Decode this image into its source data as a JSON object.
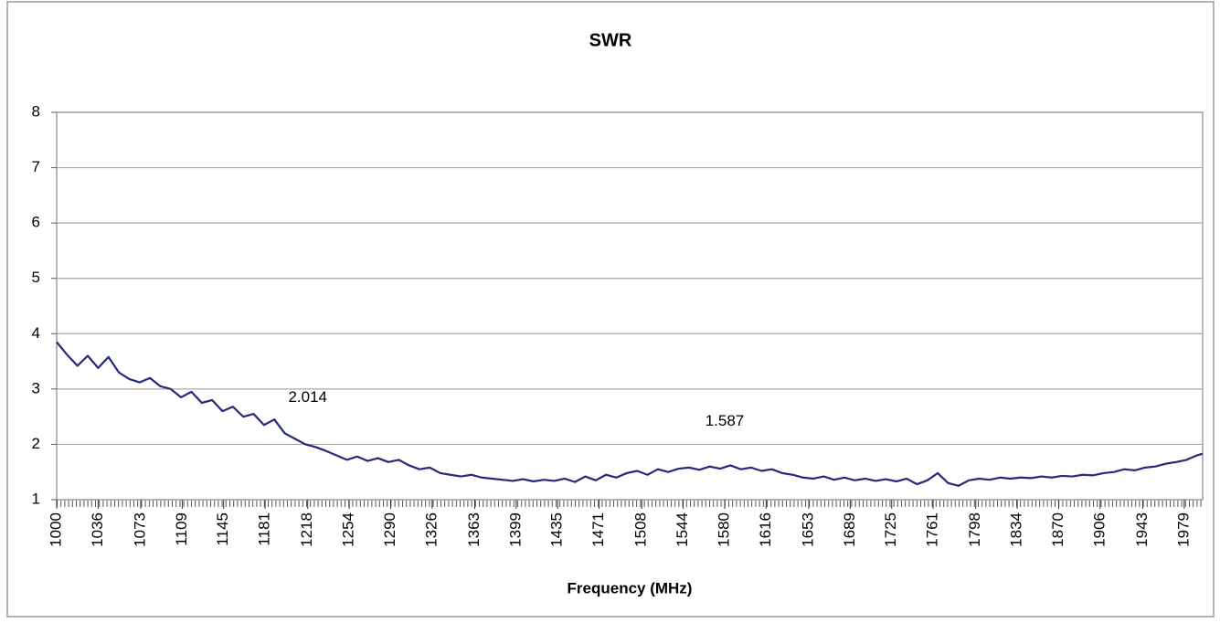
{
  "chart_data": {
    "type": "line",
    "title": "SWR",
    "x_label": "Frequency (MHz)",
    "x": [
      1000,
      1009,
      1018,
      1027,
      1036,
      1045,
      1054,
      1063,
      1072,
      1081,
      1090,
      1099,
      1108,
      1117,
      1126,
      1135,
      1144,
      1153,
      1162,
      1171,
      1180,
      1189,
      1198,
      1207,
      1216,
      1225,
      1234,
      1243,
      1252,
      1261,
      1270,
      1279,
      1288,
      1297,
      1306,
      1315,
      1324,
      1333,
      1342,
      1351,
      1360,
      1369,
      1378,
      1387,
      1396,
      1405,
      1414,
      1423,
      1432,
      1441,
      1450,
      1459,
      1468,
      1477,
      1486,
      1495,
      1504,
      1513,
      1522,
      1531,
      1540,
      1549,
      1558,
      1567,
      1576,
      1585,
      1594,
      1603,
      1612,
      1621,
      1630,
      1639,
      1648,
      1657,
      1666,
      1675,
      1684,
      1693,
      1702,
      1711,
      1720,
      1729,
      1738,
      1747,
      1756,
      1765,
      1774,
      1783,
      1792,
      1801,
      1810,
      1819,
      1828,
      1837,
      1846,
      1855,
      1864,
      1873,
      1882,
      1891,
      1900,
      1909,
      1918,
      1927,
      1936,
      1945,
      1954,
      1963,
      1972,
      1981,
      1990,
      1995
    ],
    "series": [
      {
        "name": "SWR",
        "color": "#27297a",
        "values": [
          3.85,
          3.62,
          3.42,
          3.6,
          3.38,
          3.58,
          3.3,
          3.18,
          3.12,
          3.2,
          3.05,
          3.0,
          2.85,
          2.95,
          2.75,
          2.8,
          2.6,
          2.68,
          2.5,
          2.55,
          2.35,
          2.45,
          2.2,
          2.1,
          2.0,
          1.95,
          1.88,
          1.8,
          1.72,
          1.78,
          1.7,
          1.75,
          1.68,
          1.72,
          1.62,
          1.55,
          1.58,
          1.48,
          1.45,
          1.42,
          1.45,
          1.4,
          1.38,
          1.36,
          1.34,
          1.37,
          1.33,
          1.36,
          1.34,
          1.38,
          1.32,
          1.42,
          1.35,
          1.45,
          1.4,
          1.48,
          1.52,
          1.45,
          1.55,
          1.5,
          1.56,
          1.58,
          1.54,
          1.6,
          1.56,
          1.62,
          1.55,
          1.58,
          1.52,
          1.55,
          1.48,
          1.45,
          1.4,
          1.38,
          1.42,
          1.36,
          1.4,
          1.35,
          1.38,
          1.34,
          1.37,
          1.33,
          1.38,
          1.28,
          1.35,
          1.48,
          1.3,
          1.25,
          1.35,
          1.38,
          1.36,
          1.4,
          1.38,
          1.4,
          1.39,
          1.42,
          1.4,
          1.43,
          1.42,
          1.45,
          1.44,
          1.48,
          1.5,
          1.55,
          1.53,
          1.58,
          1.6,
          1.65,
          1.68,
          1.72,
          1.8,
          1.83
        ]
      }
    ],
    "annotations": [
      {
        "x": 1218,
        "value": 2.014
      },
      {
        "x": 1580,
        "value": 1.587
      }
    ],
    "xlim": [
      1000,
      1995
    ],
    "xticks": [
      1000,
      1036,
      1073,
      1109,
      1145,
      1181,
      1218,
      1254,
      1290,
      1326,
      1363,
      1399,
      1435,
      1471,
      1508,
      1544,
      1580,
      1616,
      1653,
      1689,
      1725,
      1761,
      1798,
      1834,
      1870,
      1906,
      1943,
      1979
    ],
    "ylim": [
      1,
      8
    ],
    "yticks": [
      1,
      2,
      3,
      4,
      5,
      6,
      7,
      8
    ],
    "grid": true
  }
}
